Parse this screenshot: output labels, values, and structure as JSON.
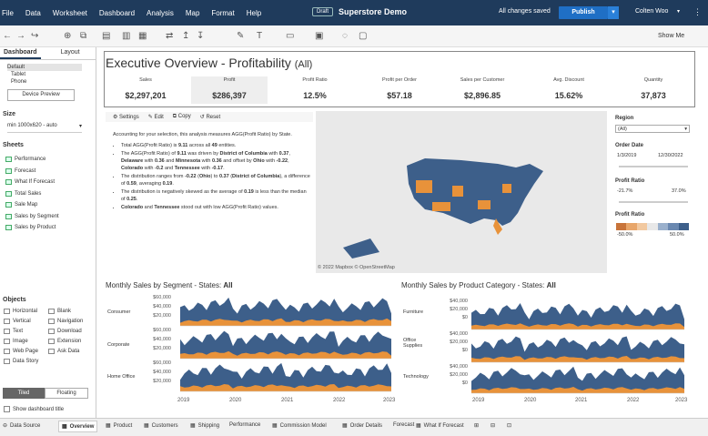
{
  "menu": [
    "File",
    "Data",
    "Worksheet",
    "Dashboard",
    "Analysis",
    "Map",
    "Format",
    "Help"
  ],
  "header": {
    "draft": "Draft",
    "title": "Superstore Demo",
    "saved": "All changes saved",
    "publish": "Publish",
    "user": "Colten Woo"
  },
  "toolbar": {
    "show_me": "Show Me"
  },
  "sidebar": {
    "tabs": [
      "Dashboard",
      "Layout"
    ],
    "devices": [
      "Default",
      "Tablet",
      "Phone"
    ],
    "device_preview": "Device Preview",
    "size_label": "Size",
    "size_value": "min 1000x620 - auto",
    "sheets_label": "Sheets",
    "sheets": [
      "Performance",
      "Forecast",
      "What If Forecast",
      "Total Sales",
      "Sale Map",
      "Sales by Segment",
      "Sales by Product"
    ],
    "objects_label": "Objects",
    "objects": [
      "Horizontal",
      "Blank",
      "Vertical",
      "Navigation",
      "Text",
      "Download",
      "Image",
      "Extension",
      "Web Page",
      "Ask Data",
      "Data Story"
    ],
    "tiled": "Tiled",
    "floating": "Floating",
    "show_title": "Show dashboard title"
  },
  "dashboard": {
    "title": "Executive Overview - Profitability",
    "title_sub": "(All)",
    "kpis": [
      {
        "label": "Sales",
        "value": "$2,297,201"
      },
      {
        "label": "Profit",
        "value": "$286,397"
      },
      {
        "label": "Profit Ratio",
        "value": "12.5%"
      },
      {
        "label": "Profit per Order",
        "value": "$57.18"
      },
      {
        "label": "Sales per Customer",
        "value": "$2,896.85"
      },
      {
        "label": "Avg. Discount",
        "value": "15.62%"
      },
      {
        "label": "Quantity",
        "value": "37,873"
      }
    ],
    "panel_actions": [
      "Settings",
      "Edit",
      "Copy",
      "Reset"
    ],
    "explain_intro": "Accounting for your selection, this analysis measures AGG(Profit Ratio) by State.",
    "bullets": [
      [
        "Total AGG(Profit Ratio) is ",
        "9.11",
        " across all ",
        "49",
        " entities."
      ],
      [
        "The AGG(Profit Ratio) of ",
        "9.11",
        " was driven by ",
        "District of Columbia",
        " with ",
        "0.37",
        ", ",
        "Delaware",
        " with ",
        "0.36",
        " and ",
        "Minnesota",
        " with ",
        "0.36",
        " and offset by ",
        "Ohio",
        " with ",
        "-0.22",
        ", ",
        "Colorado",
        " with ",
        "-0.2",
        " and ",
        "Tennessee",
        " with ",
        "-0.17",
        "."
      ],
      [
        "The distribution ranges from ",
        "-0.22",
        " (",
        "Ohio",
        ") to ",
        "0.37",
        " (",
        "District of Columbia",
        "), a difference of ",
        "0.59",
        ", averaging ",
        "0.19",
        "."
      ],
      [
        "The distribution is negatively skewed as the average of ",
        "0.19",
        " is less than the median of ",
        "0.25",
        "."
      ],
      [
        "",
        "Colorado",
        " and ",
        "Tennessee",
        " stood out with low AGG(Profit Ratio) values."
      ]
    ],
    "map_attr": "© 2022 Mapbox  © OpenStreetMap",
    "filters": {
      "region_label": "Region",
      "region_value": "(All)",
      "date_label": "Order Date",
      "date_from": "1/3/2019",
      "date_to": "12/30/2022",
      "pr_label": "Profit Ratio",
      "pr_min": "-21.7%",
      "pr_max": "37.0%",
      "legend_label": "Profit Ratio",
      "legend_min": "-50.0%",
      "legend_max": "50.0%"
    },
    "seg_title": "Monthly Sales by Segment - States: ",
    "seg_title_b": "All",
    "cat_title": "Monthly Sales by Product Category - States: ",
    "cat_title_b": "All",
    "segments": [
      "Consumer",
      "Corporate",
      "Home Office"
    ],
    "categories": [
      "Furniture",
      "Office Supplies",
      "Technology"
    ],
    "seg_ticks": [
      "$60,000",
      "$40,000",
      "$20,000"
    ],
    "cat_ticks": [
      "$40,000",
      "$20,000",
      "$0"
    ],
    "years": [
      "2019",
      "2020",
      "2021",
      "2022",
      "2023"
    ]
  },
  "colors": {
    "blue": "#3d5f8a",
    "orange": "#e8923a"
  },
  "bottom_tabs": [
    "Data Source",
    "Overview",
    "Product",
    "Customers",
    "Shipping",
    "Performance",
    "Commission Model",
    "Order Details",
    "Forecast",
    "What If Forecast"
  ]
}
